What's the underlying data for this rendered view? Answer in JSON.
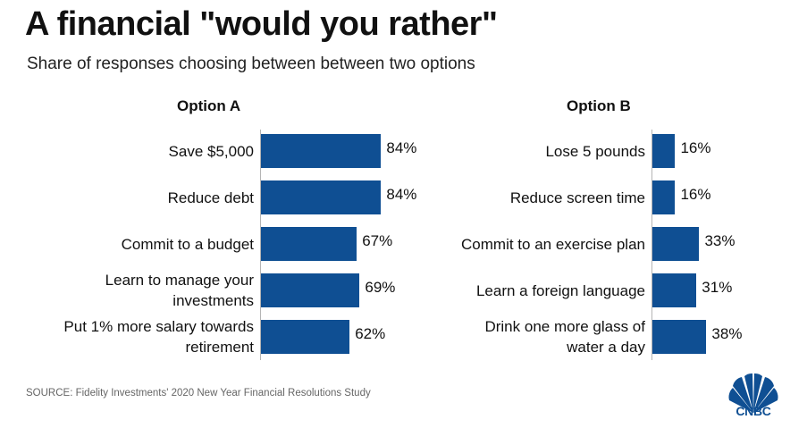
{
  "title": "A financial \"would you rather\"",
  "subtitle": "Share of responses choosing between between two options",
  "source": "SOURCE: Fidelity Investments' 2020 New Year Financial Resolutions Study",
  "logo_text": "CNBC",
  "colors": {
    "bar": "#0f4f93",
    "axis": "#b5b5b5"
  },
  "chart_data": [
    {
      "type": "bar",
      "orientation": "horizontal",
      "title": "Option A",
      "categories": [
        [
          "Save $5,000"
        ],
        [
          "Reduce debt"
        ],
        [
          "Commit to a budget"
        ],
        [
          "Learn to manage your",
          "investments"
        ],
        [
          "Put 1% more salary towards",
          "retirement"
        ]
      ],
      "values": [
        84,
        84,
        67,
        69,
        62
      ],
      "value_labels": [
        "84%",
        "84%",
        "67%",
        "69%",
        "62%"
      ],
      "xlim": [
        0,
        100
      ],
      "grid": false
    },
    {
      "type": "bar",
      "orientation": "horizontal",
      "title": "Option B",
      "categories": [
        [
          "Lose 5 pounds"
        ],
        [
          "Reduce screen time"
        ],
        [
          "Commit to an exercise plan"
        ],
        [
          "Learn a foreign language"
        ],
        [
          "Drink one more glass of",
          "water a day"
        ]
      ],
      "values": [
        16,
        16,
        33,
        31,
        38
      ],
      "value_labels": [
        "16%",
        "16%",
        "33%",
        "31%",
        "38%"
      ],
      "xlim": [
        0,
        100
      ],
      "grid": false
    }
  ]
}
